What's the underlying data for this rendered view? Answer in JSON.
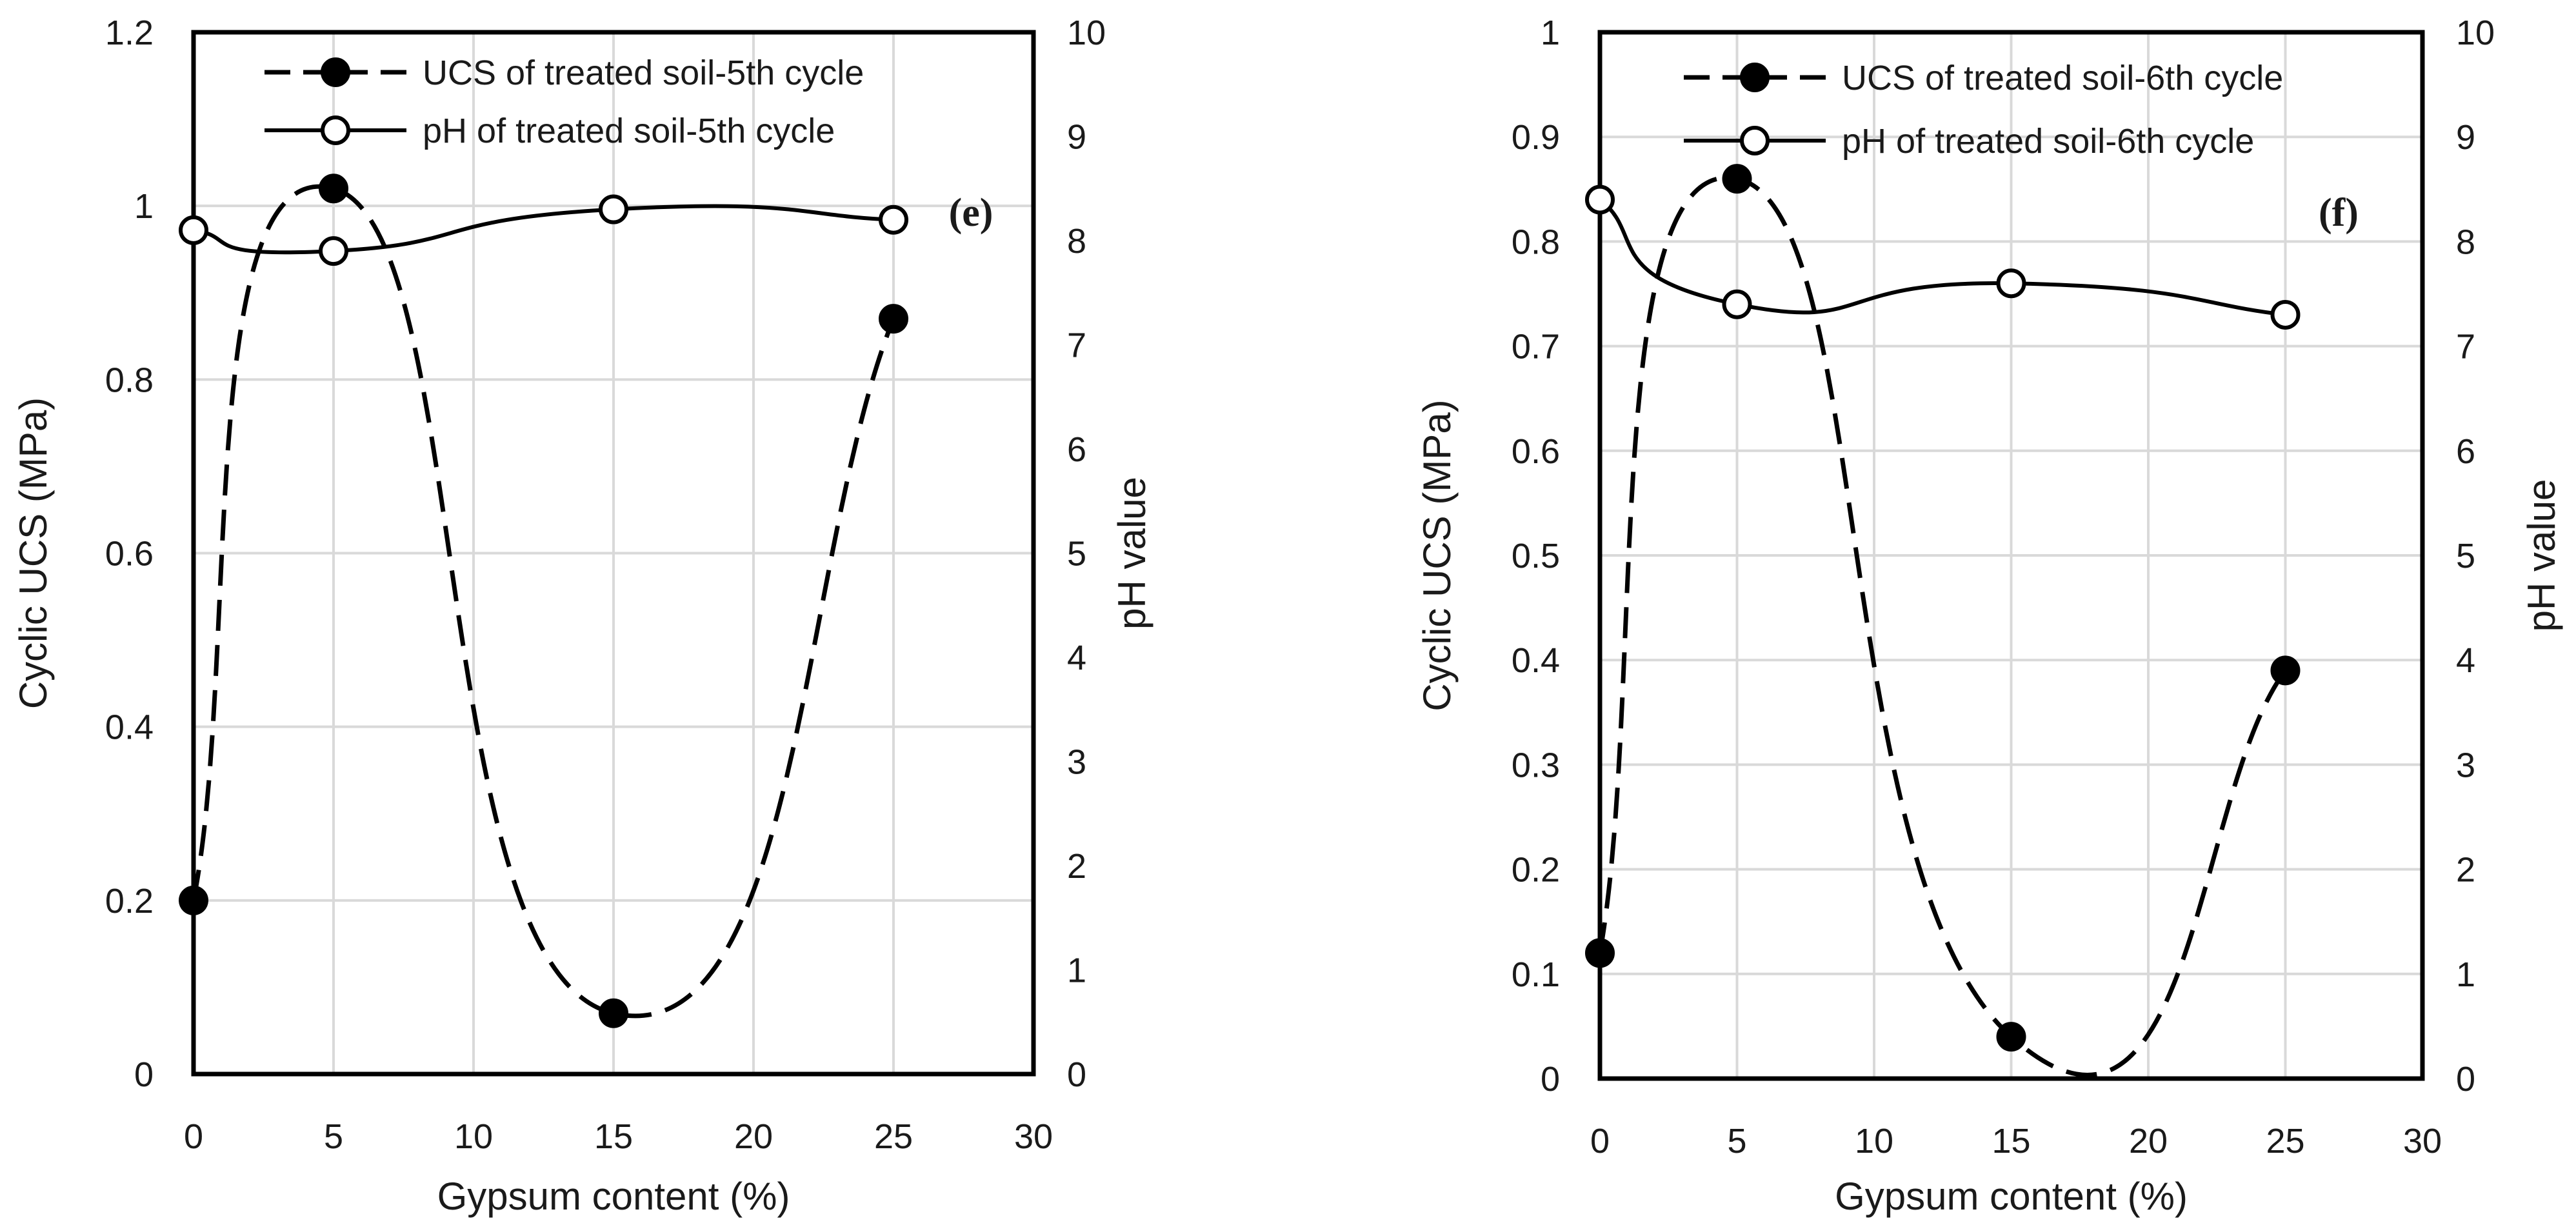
{
  "chart_data": [
    {
      "type": "line",
      "panel_label": "(e)",
      "xlabel": "Gypsum content (%)",
      "ylabel": "Cyclic UCS (MPa)",
      "y2label": "pH value",
      "xlim": [
        0,
        30
      ],
      "ylim": [
        0,
        1.2
      ],
      "y2lim": [
        0,
        10
      ],
      "x_ticks": [
        0,
        5,
        10,
        15,
        20,
        25,
        30
      ],
      "y_ticks": [
        0,
        0.2,
        0.4,
        0.6,
        0.8,
        1,
        1.2
      ],
      "y2_ticks": [
        0,
        1,
        2,
        3,
        4,
        5,
        6,
        7,
        8,
        9,
        10
      ],
      "x_tick_labels": [
        "0",
        "5",
        "10",
        "15",
        "20",
        "25",
        "30"
      ],
      "y_tick_labels": [
        "0",
        "0.2",
        "0.4",
        "0.6",
        "0.8",
        "1",
        "1.2"
      ],
      "y2_tick_labels": [
        "0",
        "1",
        "2",
        "3",
        "4",
        "5",
        "6",
        "7",
        "8",
        "9",
        "10"
      ],
      "grid": true,
      "legend_position": "top",
      "series": [
        {
          "name": "UCS of treated soil-5th cycle",
          "axis": "left",
          "style": "dashed",
          "marker": "filled-circle",
          "x": [
            0,
            5,
            15,
            25
          ],
          "values": [
            0.2,
            1.02,
            0.07,
            0.87
          ]
        },
        {
          "name": "pH of treated soil-5th cycle",
          "axis": "right",
          "style": "solid",
          "marker": "open-circle",
          "x": [
            0,
            5,
            15,
            25
          ],
          "values": [
            8.1,
            7.9,
            8.3,
            8.2
          ]
        }
      ]
    },
    {
      "type": "line",
      "panel_label": "(f)",
      "xlabel": "Gypsum content (%)",
      "ylabel": "Cyclic UCS (MPa)",
      "y2label": "pH value",
      "xlim": [
        0,
        30
      ],
      "ylim": [
        0,
        1
      ],
      "y2lim": [
        0,
        10
      ],
      "x_ticks": [
        0,
        5,
        10,
        15,
        20,
        25,
        30
      ],
      "y_ticks": [
        0,
        0.1,
        0.2,
        0.3,
        0.4,
        0.5,
        0.6,
        0.7,
        0.8,
        0.9,
        1
      ],
      "y2_ticks": [
        0,
        1,
        2,
        3,
        4,
        5,
        6,
        7,
        8,
        9,
        10
      ],
      "x_tick_labels": [
        "0",
        "5",
        "10",
        "15",
        "20",
        "25",
        "30"
      ],
      "y_tick_labels": [
        "0",
        "0.1",
        "0.2",
        "0.3",
        "0.4",
        "0.5",
        "0.6",
        "0.7",
        "0.8",
        "0.9",
        "1"
      ],
      "y2_tick_labels": [
        "0",
        "1",
        "2",
        "3",
        "4",
        "5",
        "6",
        "7",
        "8",
        "9",
        "10"
      ],
      "grid": true,
      "legend_position": "top",
      "series": [
        {
          "name": "UCS of treated soil-6th cycle",
          "axis": "left",
          "style": "dashed",
          "marker": "filled-circle",
          "x": [
            0,
            5,
            15,
            25
          ],
          "values": [
            0.12,
            0.86,
            0.04,
            0.39
          ]
        },
        {
          "name": "pH of treated soil-6th cycle",
          "axis": "right",
          "style": "solid",
          "marker": "open-circle",
          "x": [
            0,
            5,
            15,
            25
          ],
          "values": [
            8.4,
            7.4,
            7.6,
            7.3
          ]
        }
      ]
    }
  ]
}
